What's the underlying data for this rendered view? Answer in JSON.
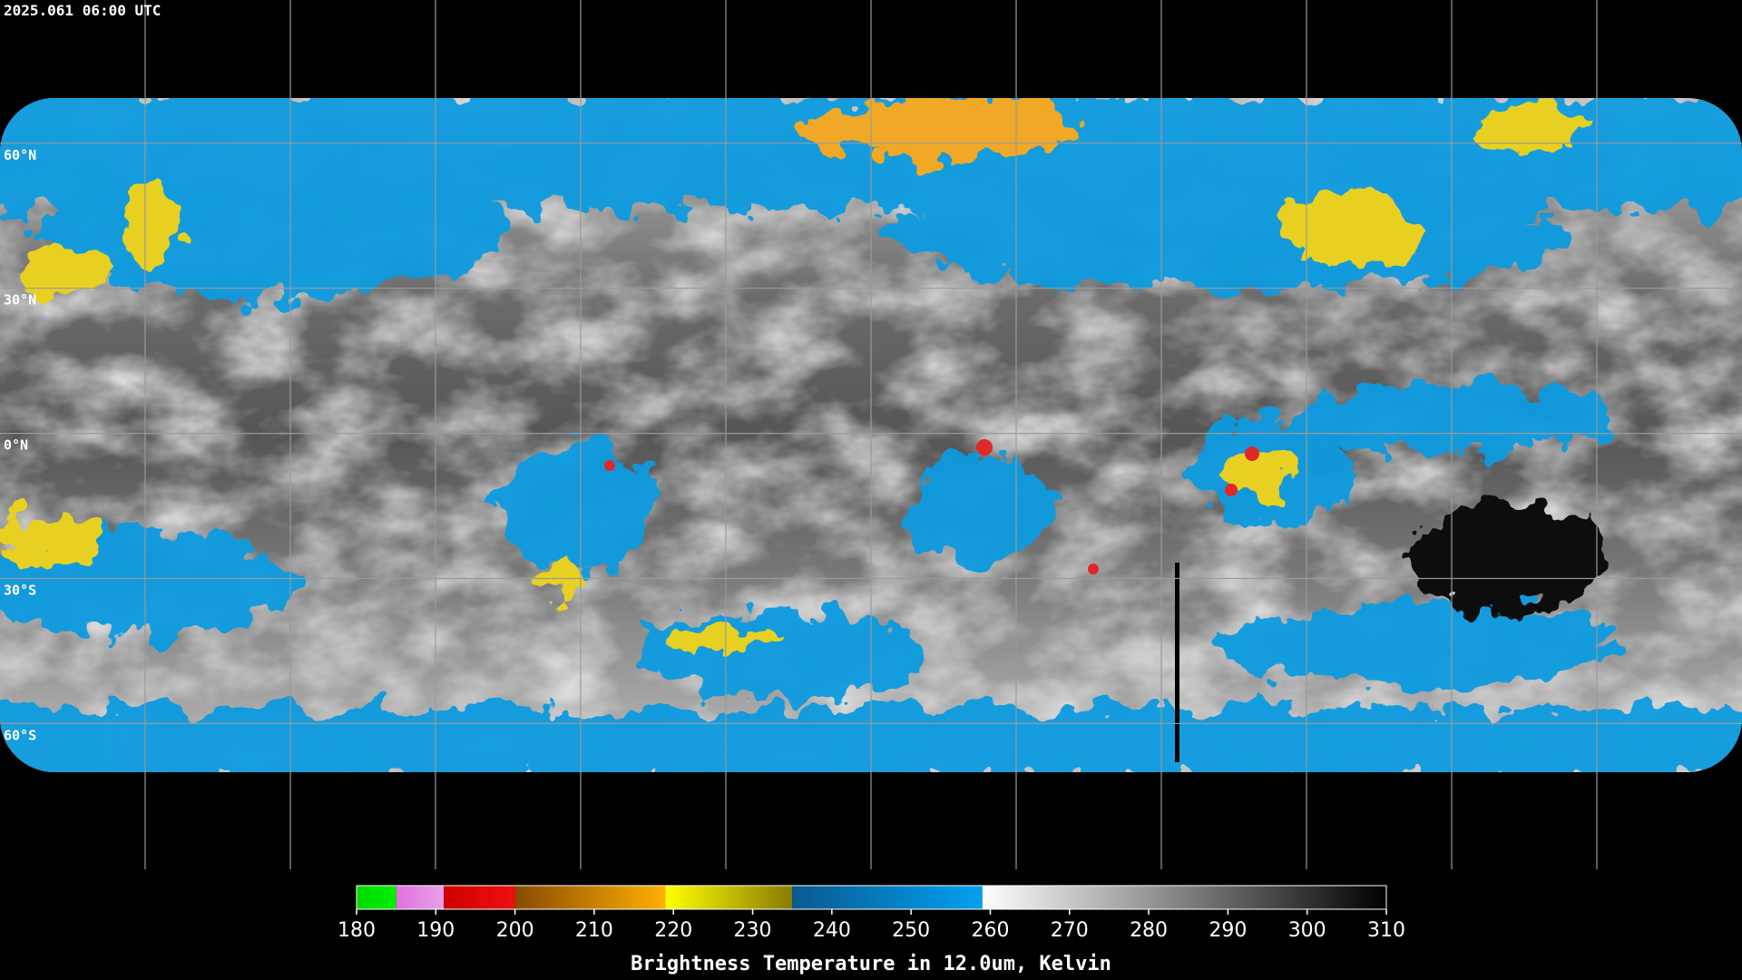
{
  "timestamp": "2025.061 06:00 UTC",
  "latitudes": [
    {
      "value": 60,
      "label": "60°N"
    },
    {
      "value": 30,
      "label": "30°N"
    },
    {
      "value": 0,
      "label": "0°N"
    },
    {
      "value": -30,
      "label": "30°S"
    },
    {
      "value": -60,
      "label": "60°S"
    }
  ],
  "colorbar": {
    "title": "Brightness Temperature in 12.0um, Kelvin",
    "range": [
      180,
      310
    ],
    "ticks": [
      180,
      190,
      200,
      210,
      220,
      230,
      240,
      250,
      260,
      270,
      280,
      290,
      300,
      310
    ],
    "segments": [
      {
        "from": 180,
        "to": 185,
        "colors": [
          "#00d800",
          "#00f000"
        ]
      },
      {
        "from": 185,
        "to": 191,
        "colors": [
          "#e070e0",
          "#e8a0e8"
        ]
      },
      {
        "from": 191,
        "to": 200,
        "colors": [
          "#d00000",
          "#f01010"
        ]
      },
      {
        "from": 200,
        "to": 219,
        "colors": [
          "#8a4a00",
          "#ffb000"
        ]
      },
      {
        "from": 219,
        "to": 235,
        "colors": [
          "#ffff00",
          "#8a7a00"
        ]
      },
      {
        "from": 235,
        "to": 259,
        "colors": [
          "#0a5a90",
          "#00a0f0"
        ]
      },
      {
        "from": 259,
        "to": 310,
        "colors": [
          "#ffffff",
          "#000000"
        ]
      }
    ]
  }
}
